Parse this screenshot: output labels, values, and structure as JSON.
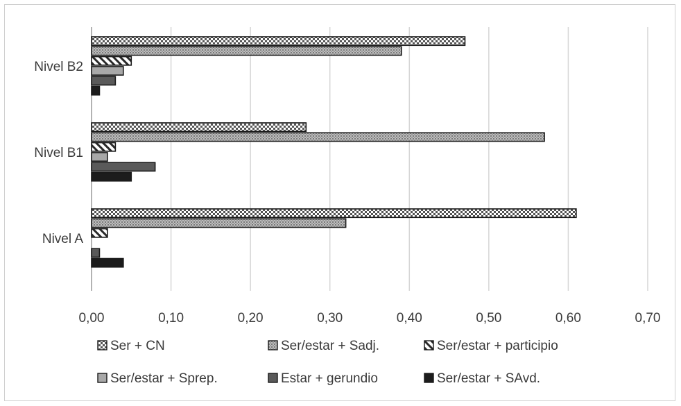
{
  "chart_data": {
    "type": "bar",
    "orientation": "horizontal",
    "categories": [
      "Nivel B2",
      "Nivel B1",
      "Nivel A"
    ],
    "series": [
      {
        "name": "Ser + CN",
        "values": [
          0.47,
          0.27,
          0.61
        ],
        "pattern": "checker"
      },
      {
        "name": "Ser/estar + Sadj.",
        "values": [
          0.39,
          0.57,
          0.32
        ],
        "pattern": "dots"
      },
      {
        "name": "Ser/estar + participio",
        "values": [
          0.05,
          0.03,
          0.02
        ],
        "pattern": "hatch"
      },
      {
        "name": "Ser/estar + Sprep.",
        "values": [
          0.04,
          0.02,
          0.0
        ],
        "pattern": "light-gray"
      },
      {
        "name": "Estar + gerundio",
        "values": [
          0.03,
          0.08,
          0.01
        ],
        "pattern": "dark-gray"
      },
      {
        "name": "Ser/estar + SAvd.",
        "values": [
          0.01,
          0.05,
          0.04
        ],
        "pattern": "black"
      }
    ],
    "xlim": [
      0,
      0.7
    ],
    "x_ticks": [
      "0,00",
      "0,10",
      "0,20",
      "0,30",
      "0,40",
      "0,50",
      "0,60",
      "0,70"
    ],
    "grid": "vertical",
    "legend_position": "bottom",
    "colors": {
      "gridline": "#d6d6d6",
      "axis": "#9a9a9a",
      "text": "#3a3a3a",
      "bar_stroke": "#1a1a1a"
    }
  }
}
